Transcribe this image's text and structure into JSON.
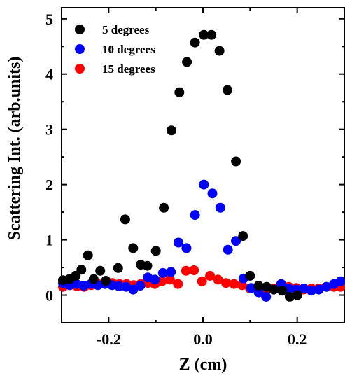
{
  "chart_data": {
    "type": "scatter",
    "title": "",
    "xlabel": "Z (cm)",
    "ylabel": "Scattering Int. (arb.units)",
    "xlim": [
      -0.3,
      0.3
    ],
    "ylim": [
      -0.5,
      5.2
    ],
    "xticks": [
      -0.2,
      0.0,
      0.2
    ],
    "xtick_labels": [
      "-0.2",
      "0.0",
      "0.2"
    ],
    "yticks": [
      0,
      1,
      2,
      3,
      4,
      5
    ],
    "ytick_labels": [
      "0",
      "1",
      "2",
      "3",
      "4",
      "5"
    ],
    "grid": false,
    "legend_position": "top-left",
    "series": [
      {
        "name": "5 degrees",
        "color": "#000000",
        "points": [
          [
            -0.297,
            0.27
          ],
          [
            -0.283,
            0.29
          ],
          [
            -0.27,
            0.35
          ],
          [
            -0.258,
            0.46
          ],
          [
            -0.244,
            0.72
          ],
          [
            -0.232,
            0.29
          ],
          [
            -0.218,
            0.44
          ],
          [
            -0.206,
            0.26
          ],
          [
            -0.18,
            0.49
          ],
          [
            -0.165,
            1.37
          ],
          [
            -0.148,
            0.85
          ],
          [
            -0.132,
            0.55
          ],
          [
            -0.118,
            0.53
          ],
          [
            -0.1,
            0.8
          ],
          [
            -0.083,
            1.58
          ],
          [
            -0.067,
            2.98
          ],
          [
            -0.05,
            3.67
          ],
          [
            -0.034,
            4.22
          ],
          [
            -0.017,
            4.57
          ],
          [
            0.002,
            4.71
          ],
          [
            0.018,
            4.71
          ],
          [
            0.035,
            4.42
          ],
          [
            0.052,
            3.71
          ],
          [
            0.07,
            2.42
          ],
          [
            0.085,
            1.07
          ],
          [
            0.1,
            0.35
          ],
          [
            0.118,
            0.17
          ],
          [
            0.135,
            0.15
          ],
          [
            0.15,
            0.1
          ],
          [
            0.168,
            0.08
          ],
          [
            0.184,
            -0.03
          ],
          [
            0.2,
            0.0
          ]
        ]
      },
      {
        "name": "10 degrees",
        "color": "#0000ff",
        "points": [
          [
            -0.297,
            0.22
          ],
          [
            -0.283,
            0.18
          ],
          [
            -0.268,
            0.2
          ],
          [
            -0.253,
            0.17
          ],
          [
            -0.238,
            0.2
          ],
          [
            -0.223,
            0.18
          ],
          [
            -0.208,
            0.2
          ],
          [
            -0.193,
            0.18
          ],
          [
            -0.178,
            0.16
          ],
          [
            -0.163,
            0.15
          ],
          [
            -0.148,
            0.1
          ],
          [
            -0.133,
            0.17
          ],
          [
            -0.117,
            0.32
          ],
          [
            -0.102,
            0.28
          ],
          [
            -0.085,
            0.4
          ],
          [
            -0.068,
            0.42
          ],
          [
            -0.052,
            0.95
          ],
          [
            -0.035,
            0.85
          ],
          [
            -0.017,
            1.45
          ],
          [
            0.002,
            2.0
          ],
          [
            0.02,
            1.84
          ],
          [
            0.037,
            1.58
          ],
          [
            0.053,
            0.82
          ],
          [
            0.07,
            0.98
          ],
          [
            0.086,
            0.3
          ],
          [
            0.102,
            0.13
          ],
          [
            0.118,
            0.05
          ],
          [
            0.134,
            -0.03
          ],
          [
            0.15,
            0.1
          ],
          [
            0.166,
            0.2
          ],
          [
            0.182,
            0.12
          ],
          [
            0.198,
            0.1
          ],
          [
            0.214,
            0.12
          ],
          [
            0.23,
            0.08
          ],
          [
            0.246,
            0.1
          ],
          [
            0.262,
            0.15
          ],
          [
            0.278,
            0.2
          ],
          [
            0.292,
            0.25
          ]
        ]
      },
      {
        "name": "15 degrees",
        "color": "#ff0000",
        "points": [
          [
            -0.297,
            0.15
          ],
          [
            -0.282,
            0.18
          ],
          [
            -0.267,
            0.16
          ],
          [
            -0.252,
            0.15
          ],
          [
            -0.237,
            0.18
          ],
          [
            -0.222,
            0.2
          ],
          [
            -0.207,
            0.22
          ],
          [
            -0.192,
            0.22
          ],
          [
            -0.177,
            0.2
          ],
          [
            -0.162,
            0.2
          ],
          [
            -0.147,
            0.18
          ],
          [
            -0.132,
            0.2
          ],
          [
            -0.117,
            0.22
          ],
          [
            -0.102,
            0.2
          ],
          [
            -0.087,
            0.25
          ],
          [
            -0.07,
            0.28
          ],
          [
            -0.053,
            0.2
          ],
          [
            -0.036,
            0.44
          ],
          [
            -0.019,
            0.45
          ],
          [
            -0.002,
            0.25
          ],
          [
            0.015,
            0.35
          ],
          [
            0.032,
            0.28
          ],
          [
            0.049,
            0.22
          ],
          [
            0.066,
            0.2
          ],
          [
            0.083,
            0.18
          ],
          [
            0.1,
            0.12
          ],
          [
            0.117,
            0.12
          ],
          [
            0.134,
            0.1
          ],
          [
            0.15,
            0.12
          ],
          [
            0.166,
            0.15
          ],
          [
            0.182,
            0.15
          ],
          [
            0.198,
            0.13
          ],
          [
            0.214,
            0.1
          ],
          [
            0.23,
            0.12
          ],
          [
            0.246,
            0.12
          ],
          [
            0.262,
            0.15
          ],
          [
            0.278,
            0.15
          ],
          [
            0.292,
            0.15
          ]
        ]
      }
    ]
  }
}
